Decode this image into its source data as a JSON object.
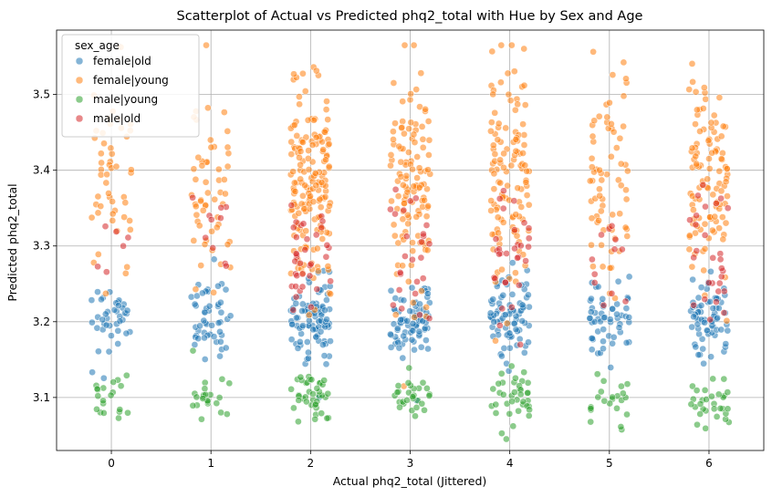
{
  "chart_data": {
    "type": "scatter",
    "title": "Scatterplot of Actual vs Predicted phq2_total with Hue by Sex and Age",
    "xlabel": "Actual phq2_total (Jittered)",
    "ylabel": "Predicted phq2_total",
    "xlim": [
      -0.55,
      6.55
    ],
    "ylim": [
      3.03,
      3.585
    ],
    "x_ticks": [
      "0",
      "1",
      "2",
      "3",
      "4",
      "5",
      "6"
    ],
    "y_ticks": [
      "3.1",
      "3.2",
      "3.3",
      "3.4",
      "3.5"
    ],
    "grid": true,
    "legend": {
      "title": "sex_age",
      "placement": "top-left"
    },
    "jitter": 0.2,
    "series": [
      {
        "name": "female|old",
        "color": "#1f77b4",
        "center": 3.205,
        "spread": 0.026,
        "counts": [
          40,
          50,
          95,
          80,
          80,
          55,
          70
        ]
      },
      {
        "name": "female|young",
        "color": "#ff7f0e",
        "center": 3.385,
        "spread": 0.07,
        "counts": [
          50,
          55,
          170,
          120,
          120,
          70,
          110
        ]
      },
      {
        "name": "male|young",
        "color": "#2ca02c",
        "center": 3.1,
        "spread": 0.018,
        "counts": [
          20,
          22,
          40,
          28,
          38,
          22,
          30
        ]
      },
      {
        "name": "male|old",
        "color": "#d62728",
        "center": 3.29,
        "spread": 0.045,
        "counts": [
          6,
          10,
          35,
          25,
          30,
          12,
          28
        ]
      }
    ]
  }
}
